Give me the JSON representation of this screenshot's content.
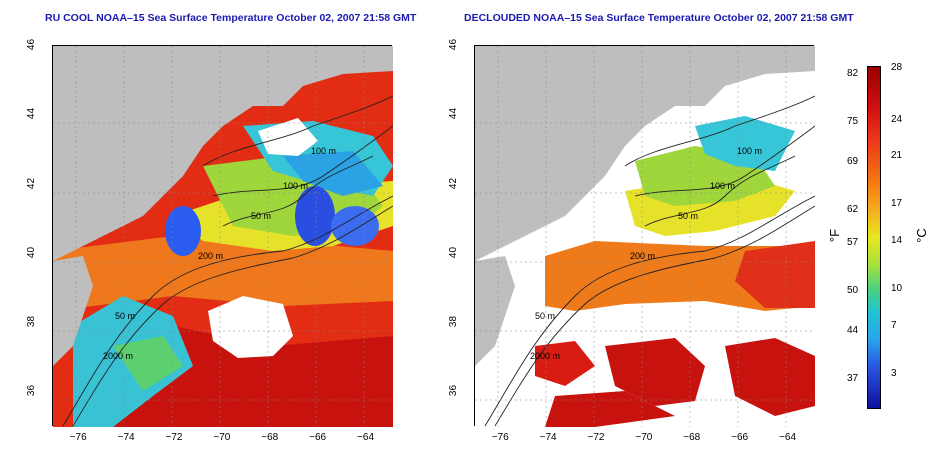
{
  "panels": [
    {
      "title": "RU COOL NOAA–15 Sea Surface Temperature October 02, 2007 21:58 GMT",
      "cloud_fill": "#2a5cf0"
    },
    {
      "title": "DECLOUDED NOAA–15 Sea Surface Temperature October 02, 2007 21:58 GMT",
      "cloud_fill": "#ffffff"
    }
  ],
  "axes": {
    "x_ticks": [
      "−76",
      "−74",
      "−72",
      "−70",
      "−68",
      "−66",
      "−64"
    ],
    "x_range": [
      -77.2,
      -63
    ],
    "y_ticks": [
      "36",
      "38",
      "40",
      "42",
      "44",
      "46"
    ],
    "y_range": [
      35,
      46
    ]
  },
  "contours": {
    "labels": [
      "100 m",
      "100 m",
      "50 m",
      "200 m",
      "50 m",
      "2000 m"
    ]
  },
  "colorbar": {
    "fahrenheit_labels": [
      "82",
      "75",
      "69",
      "62",
      "57",
      "50",
      "44",
      "37"
    ],
    "celsius_labels": [
      "28",
      "24",
      "21",
      "17",
      "14",
      "10",
      "7",
      "3"
    ],
    "f_unit": "°F",
    "c_unit": "°C"
  },
  "colors": {
    "land": "#bebebe",
    "warm": "#e02a12",
    "hot": "#b80a0a",
    "orange": "#f07a1a",
    "yellow": "#e8e426",
    "cyan": "#34c4dc",
    "green": "#8ad83c"
  }
}
